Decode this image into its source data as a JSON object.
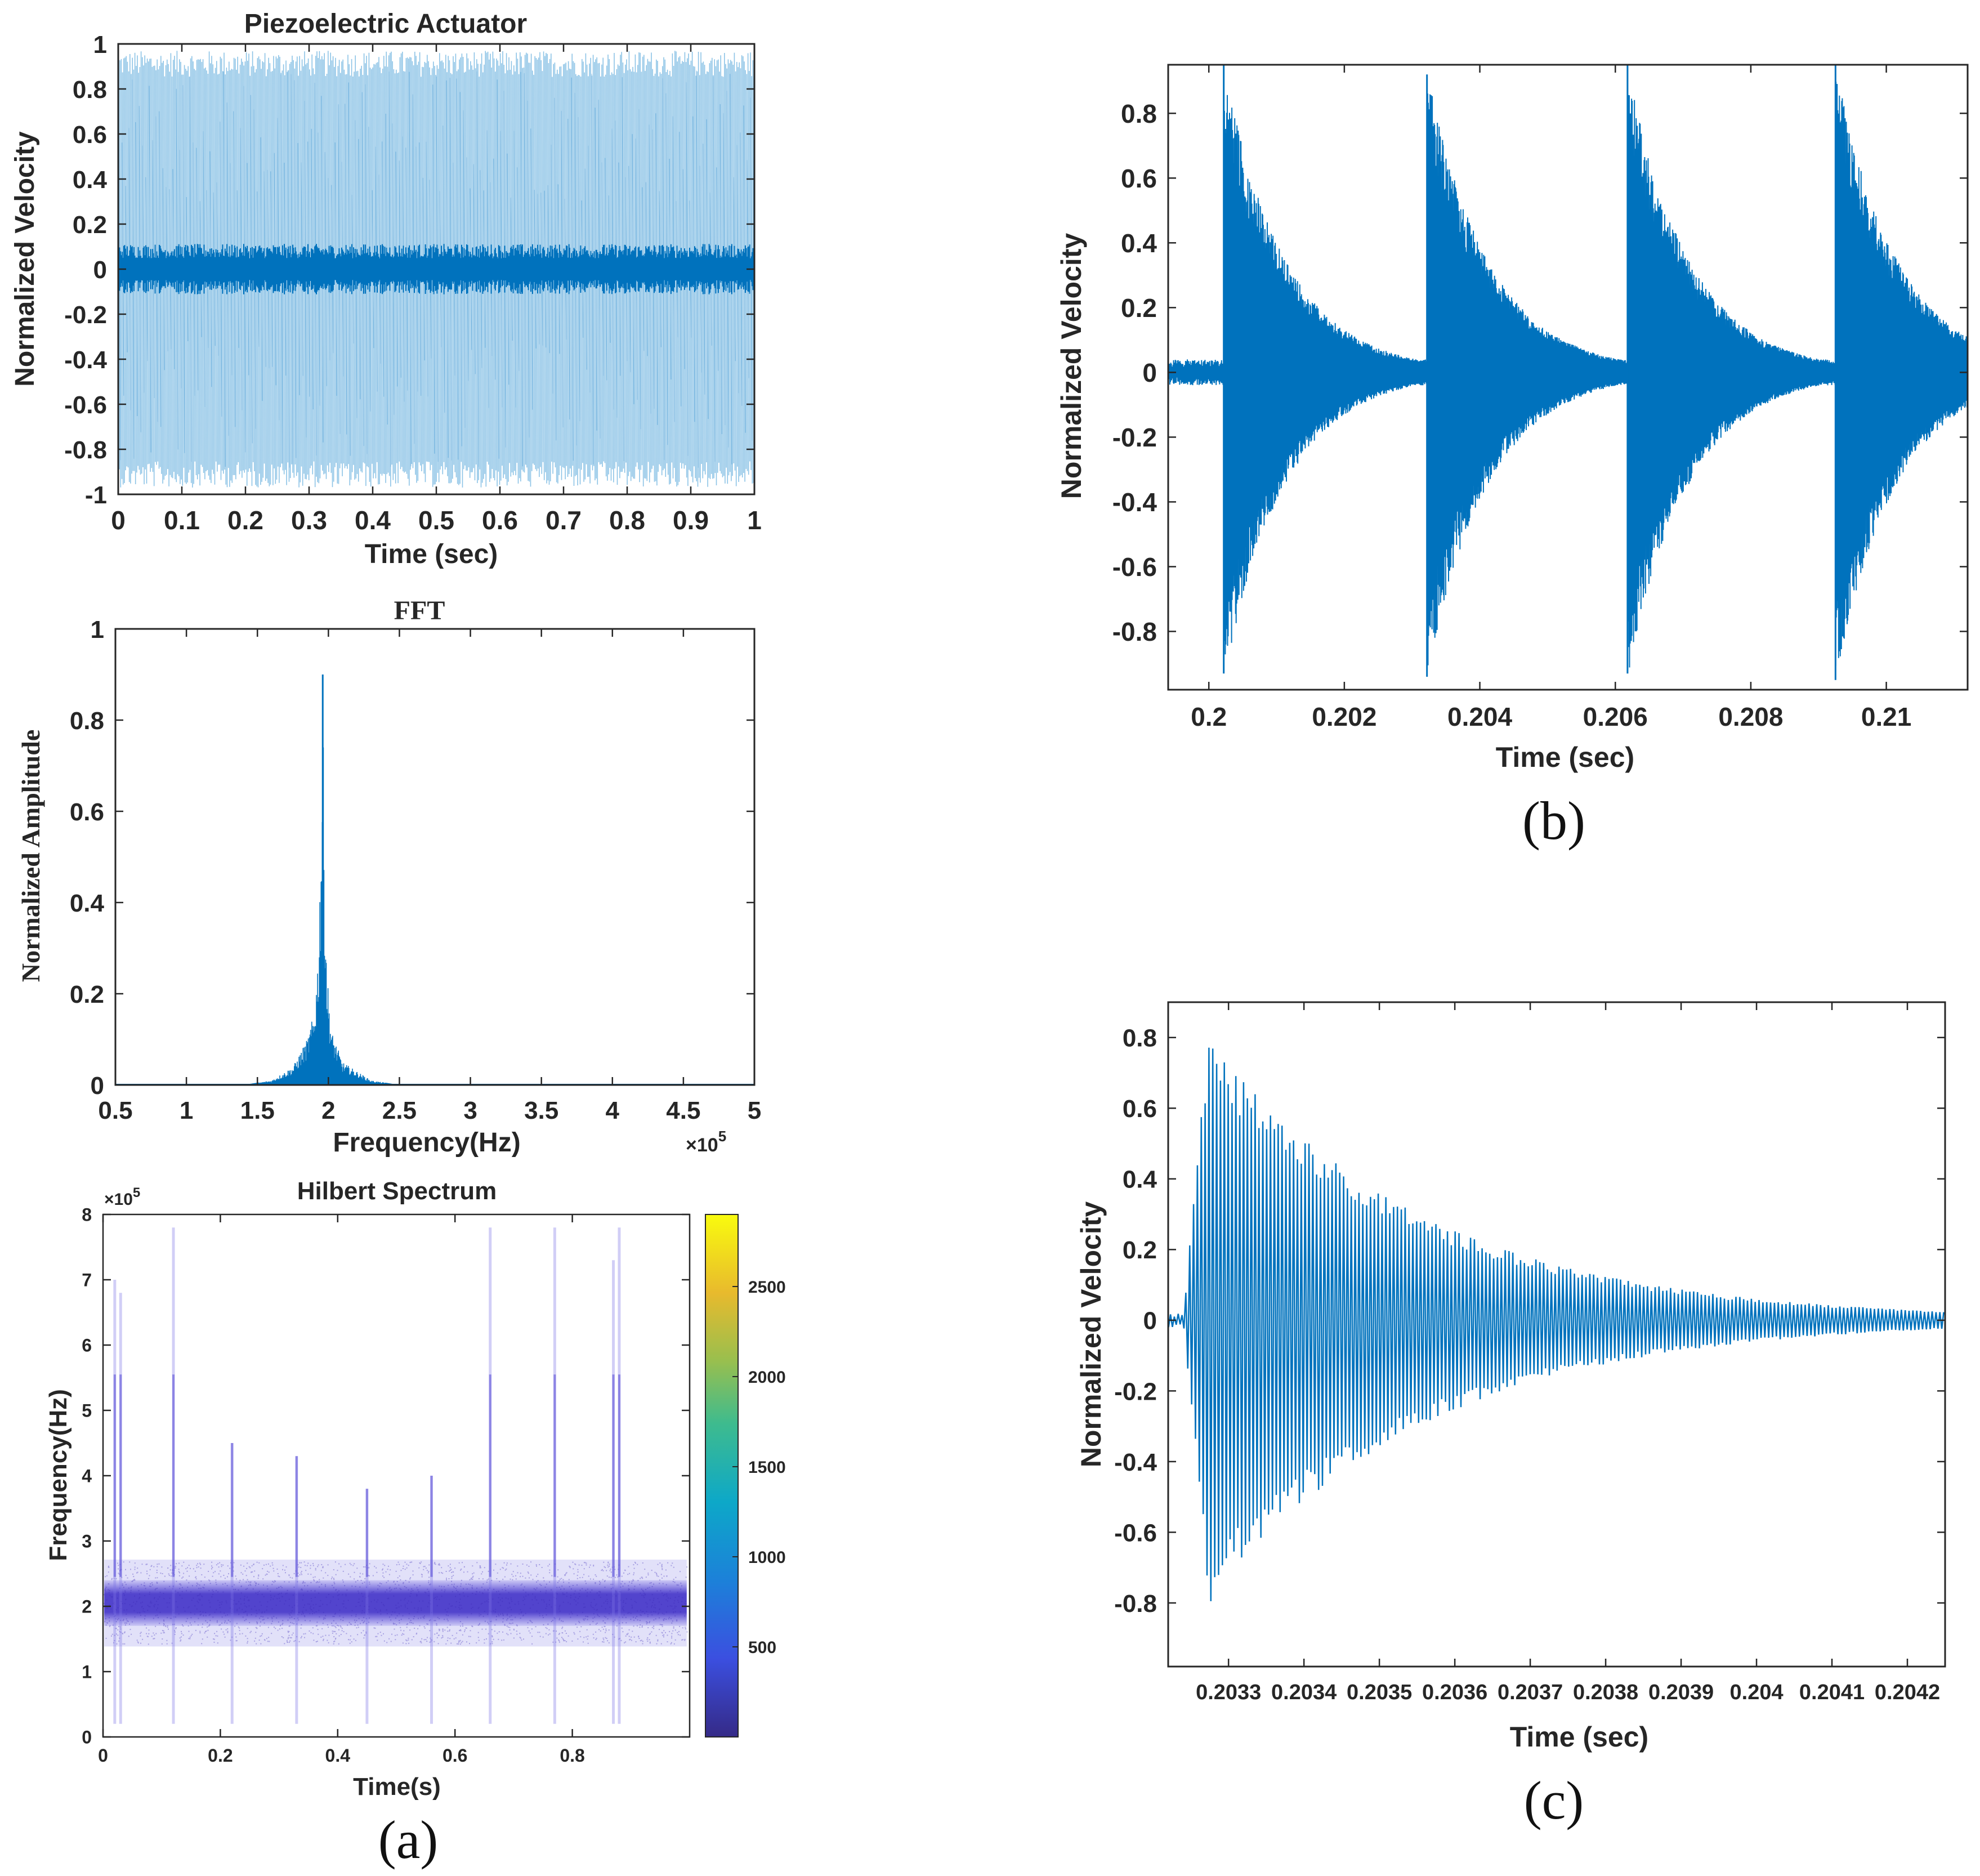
{
  "figure": {
    "panel_a": "(a)",
    "panel_b": "(b)",
    "panel_c": "(c)"
  },
  "colors": {
    "signal": "#0072BD",
    "signal_light": "#8CC3E6",
    "axis": "#262626"
  },
  "chart_data": [
    {
      "id": "piezo",
      "type": "line",
      "title": "Piezoelectric Actuator",
      "xlabel": "Time (sec)",
      "ylabel": "Normalized Velocity",
      "xlim": [
        0,
        1
      ],
      "ylim": [
        -1,
        1
      ],
      "xticks": [
        "0",
        "0.1",
        "0.2",
        "0.3",
        "0.4",
        "0.5",
        "0.6",
        "0.7",
        "0.8",
        "0.9",
        "1"
      ],
      "yticks": [
        "-1",
        "-0.8",
        "-0.6",
        "-0.4",
        "-0.2",
        "0",
        "0.2",
        "0.4",
        "0.6",
        "0.8",
        "1"
      ],
      "series": [
        {
          "description": "dense oscillation between approx -0.97 and 0.97 with dense core near 0 (about ±0.08)",
          "envelope_max": 0.97,
          "envelope_min": -0.97,
          "core_amplitude": 0.08
        }
      ]
    },
    {
      "id": "fft",
      "type": "line",
      "title": "FFT",
      "xlabel": "Frequency(Hz)",
      "ylabel": "Normalized Amplitude",
      "x_multiplier": "×10",
      "x_multiplier_exp": "5",
      "xlim": [
        0.5,
        5
      ],
      "ylim": [
        0,
        1
      ],
      "xticks": [
        "0.5",
        "1",
        "1.5",
        "2",
        "2.5",
        "3",
        "3.5",
        "4",
        "4.5",
        "5"
      ],
      "yticks": [
        "0",
        "0.2",
        "0.4",
        "0.6",
        "0.8",
        "1"
      ],
      "peak": {
        "x": 1.96,
        "y": 0.9
      },
      "series": [
        {
          "x": [
            0.5,
            1.4,
            1.6,
            1.75,
            1.85,
            1.9,
            1.93,
            1.95,
            1.96,
            1.97,
            1.99,
            2.02,
            2.1,
            2.2,
            2.3,
            2.5,
            5.0
          ],
          "y": [
            0.0,
            0.0,
            0.01,
            0.04,
            0.1,
            0.16,
            0.3,
            0.6,
            0.9,
            0.55,
            0.25,
            0.12,
            0.05,
            0.03,
            0.01,
            0.0,
            0.0
          ]
        }
      ]
    },
    {
      "id": "hilbert",
      "type": "heatmap",
      "title": "Hilbert Spectrum",
      "xlabel": "Time(s)",
      "ylabel": "Frequency(Hz)",
      "y_multiplier": "×10",
      "y_multiplier_exp": "5",
      "xlim": [
        0,
        1
      ],
      "ylim": [
        0,
        8
      ],
      "xticks": [
        "0",
        "0.2",
        "0.4",
        "0.6",
        "0.8"
      ],
      "yticks": [
        "0",
        "1",
        "2",
        "3",
        "4",
        "5",
        "6",
        "7",
        "8"
      ],
      "colorbar": {
        "min": 0,
        "max": 2900,
        "ticks": [
          "500",
          "1000",
          "1500",
          "2000",
          "2500"
        ]
      },
      "band": {
        "center": 2.05,
        "half_width": 0.35
      },
      "spikes": [
        {
          "t": 0.02,
          "top": 7.0
        },
        {
          "t": 0.03,
          "top": 6.8
        },
        {
          "t": 0.12,
          "top": 7.8
        },
        {
          "t": 0.22,
          "top": 4.5
        },
        {
          "t": 0.33,
          "top": 4.3
        },
        {
          "t": 0.45,
          "top": 3.8
        },
        {
          "t": 0.56,
          "top": 4.0
        },
        {
          "t": 0.66,
          "top": 7.8
        },
        {
          "t": 0.77,
          "top": 7.8
        },
        {
          "t": 0.87,
          "top": 7.3
        },
        {
          "t": 0.88,
          "top": 7.8
        }
      ]
    },
    {
      "id": "zoom_b",
      "type": "line",
      "title": "",
      "xlabel": "Time (sec)",
      "ylabel": "Normalized Velocity",
      "xlim": [
        0.1994,
        0.2112
      ],
      "ylim": [
        -0.98,
        0.95
      ],
      "xticks": [
        "0.2",
        "0.202",
        "0.204",
        "0.206",
        "0.208",
        "0.21"
      ],
      "yticks": [
        "-0.8",
        "-0.6",
        "-0.4",
        "-0.2",
        "0",
        "0.2",
        "0.4",
        "0.6",
        "0.8"
      ],
      "bursts": [
        {
          "t": 0.20022,
          "max": 0.95,
          "min": -0.93
        },
        {
          "t": 0.20322,
          "max": 0.92,
          "min": -0.94
        },
        {
          "t": 0.20618,
          "max": 0.95,
          "min": -0.93
        },
        {
          "t": 0.20925,
          "max": 0.95,
          "min": -0.95
        }
      ],
      "noise_amplitude": 0.04,
      "decay_time": 0.0009
    },
    {
      "id": "zoom_c",
      "type": "line",
      "title": "",
      "xlabel": "Time (sec)",
      "ylabel": "Normalized Velocity",
      "xlim": [
        0.20322,
        0.20425
      ],
      "ylim": [
        -0.98,
        0.9
      ],
      "xticks": [
        "0.2033",
        "0.2034",
        "0.2035",
        "0.2036",
        "0.2037",
        "0.2038",
        "0.2039",
        "0.204",
        "0.2041",
        "0.2042"
      ],
      "yticks": [
        "-0.8",
        "-0.6",
        "-0.4",
        "-0.2",
        "0",
        "0.2",
        "0.4",
        "0.6",
        "0.8"
      ],
      "onset": 0.20324,
      "peak_amplitude": 0.92,
      "decay_time": 0.00028,
      "noise_amplitude": 0.02,
      "period": 5.1e-06
    }
  ]
}
